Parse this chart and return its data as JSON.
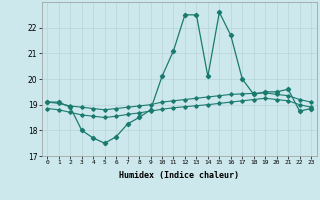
{
  "xlabel": "Humidex (Indice chaleur)",
  "background_color": "#cde8ec",
  "grid_color": "#b8d4d8",
  "line_color": "#1a7a6e",
  "xlim": [
    -0.5,
    23.5
  ],
  "ylim": [
    17,
    23
  ],
  "yticks": [
    17,
    18,
    19,
    20,
    21,
    22
  ],
  "xticks": [
    0,
    1,
    2,
    3,
    4,
    5,
    6,
    7,
    8,
    9,
    10,
    11,
    12,
    13,
    14,
    15,
    16,
    17,
    18,
    19,
    20,
    21,
    22,
    23
  ],
  "series_main_x": [
    0,
    1,
    2,
    3,
    4,
    5,
    6,
    7,
    8,
    9,
    10,
    11,
    12,
    13,
    14,
    15,
    16,
    17,
    18,
    19,
    20,
    21,
    22,
    23
  ],
  "series_main_y": [
    19.1,
    19.1,
    18.9,
    18.0,
    17.7,
    17.5,
    17.75,
    18.25,
    18.5,
    18.8,
    20.1,
    21.1,
    22.5,
    22.5,
    20.1,
    22.6,
    21.7,
    20.0,
    19.4,
    19.5,
    19.5,
    19.6,
    18.75,
    18.85
  ],
  "series_upper_x": [
    0,
    1,
    2,
    3,
    4,
    5,
    6,
    7,
    8,
    9,
    10,
    11,
    12,
    13,
    14,
    15,
    16,
    17,
    18,
    19,
    20,
    21,
    22,
    23
  ],
  "series_upper_y": [
    19.1,
    19.05,
    18.95,
    18.9,
    18.85,
    18.8,
    18.85,
    18.9,
    18.95,
    19.0,
    19.1,
    19.15,
    19.2,
    19.25,
    19.3,
    19.35,
    19.4,
    19.42,
    19.44,
    19.46,
    19.4,
    19.35,
    19.2,
    19.1
  ],
  "series_lower_x": [
    0,
    1,
    2,
    3,
    4,
    5,
    6,
    7,
    8,
    9,
    10,
    11,
    12,
    13,
    14,
    15,
    16,
    17,
    18,
    19,
    20,
    21,
    22,
    23
  ],
  "series_lower_y": [
    18.85,
    18.8,
    18.7,
    18.6,
    18.55,
    18.5,
    18.55,
    18.62,
    18.68,
    18.75,
    18.82,
    18.88,
    18.92,
    18.96,
    19.0,
    19.05,
    19.1,
    19.15,
    19.2,
    19.25,
    19.2,
    19.15,
    19.0,
    18.9
  ]
}
